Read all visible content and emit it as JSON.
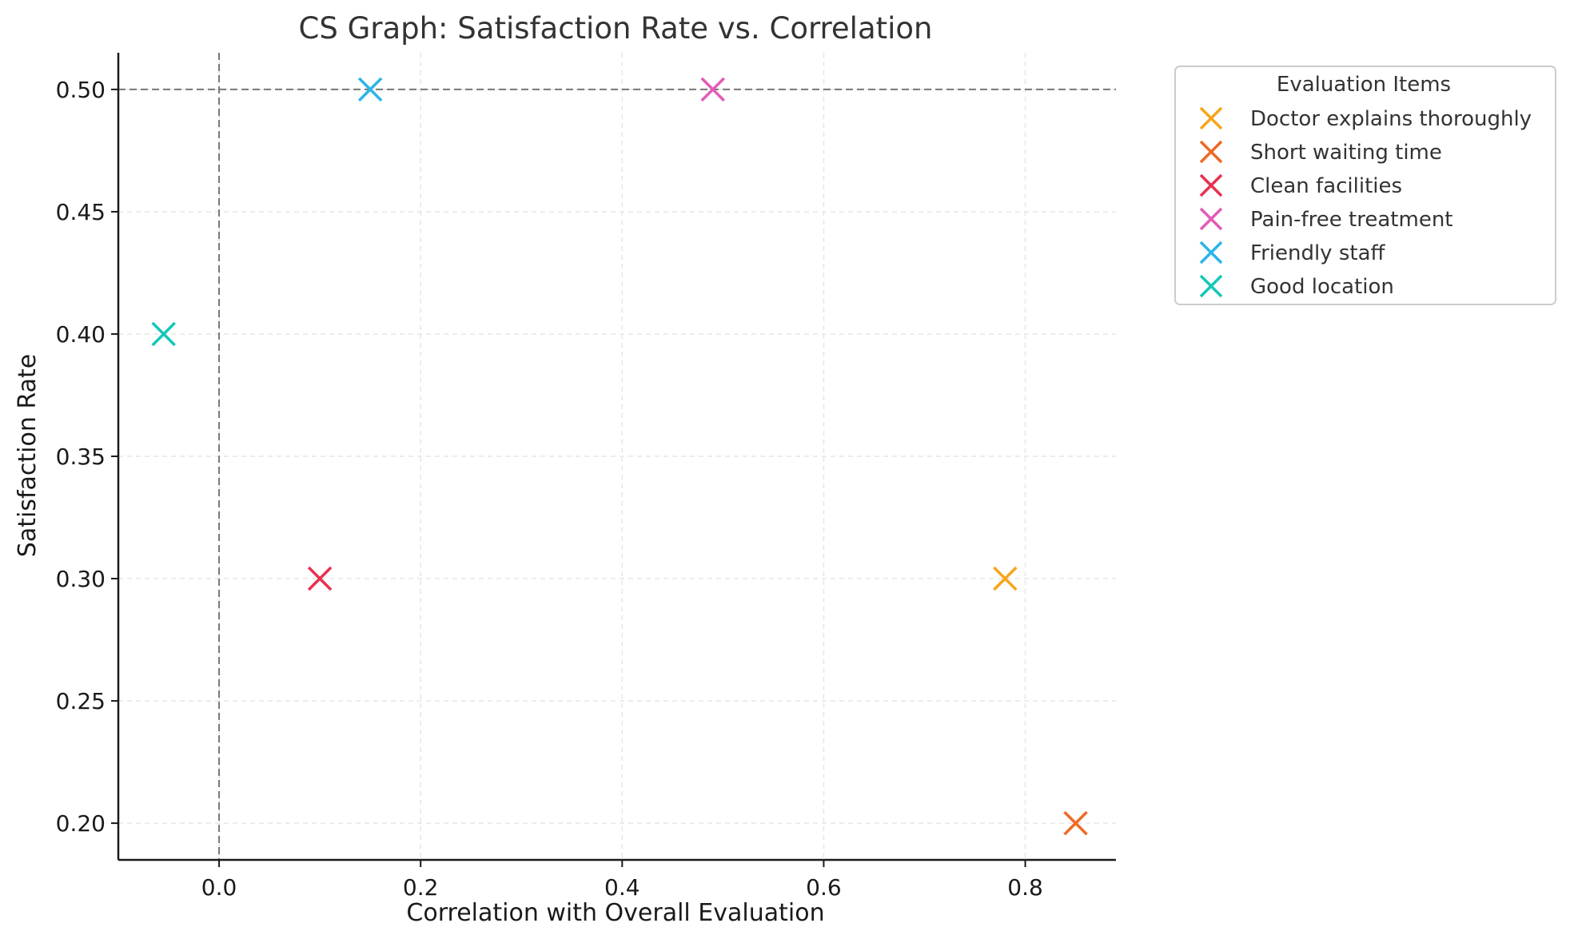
{
  "chart_data": {
    "type": "scatter",
    "title": "CS Graph: Satisfaction Rate vs. Correlation",
    "xlabel": "Correlation with Overall Evaluation",
    "ylabel": "Satisfaction Rate",
    "xlim": [
      -0.1,
      0.89
    ],
    "ylim": [
      0.185,
      0.515
    ],
    "xticks": [
      0.0,
      0.2,
      0.4,
      0.6,
      0.8
    ],
    "xtick_labels": [
      "0.0",
      "0.2",
      "0.4",
      "0.6",
      "0.8"
    ],
    "yticks": [
      0.2,
      0.25,
      0.3,
      0.35,
      0.4,
      0.45,
      0.5
    ],
    "ytick_labels": [
      "0.20",
      "0.25",
      "0.30",
      "0.35",
      "0.40",
      "0.45",
      "0.50"
    ],
    "grid": true,
    "reference_lines": {
      "x": 0.0,
      "y": 0.5
    },
    "marker": "x",
    "legend": {
      "title": "Evaluation Items",
      "placement": "outside-right-top"
    },
    "series": [
      {
        "name": "Doctor explains thoroughly",
        "color": "#F7A51C",
        "x": 0.78,
        "y": 0.3
      },
      {
        "name": "Short waiting time",
        "color": "#EE6A24",
        "x": 0.85,
        "y": 0.2
      },
      {
        "name": "Clean facilities",
        "color": "#E8304F",
        "x": 0.1,
        "y": 0.3
      },
      {
        "name": "Pain-free treatment",
        "color": "#E35BB8",
        "x": 0.49,
        "y": 0.5
      },
      {
        "name": "Friendly staff",
        "color": "#2BB4EA",
        "x": 0.15,
        "y": 0.5
      },
      {
        "name": "Good location",
        "color": "#14C7B8",
        "x": -0.055,
        "y": 0.4
      }
    ]
  }
}
